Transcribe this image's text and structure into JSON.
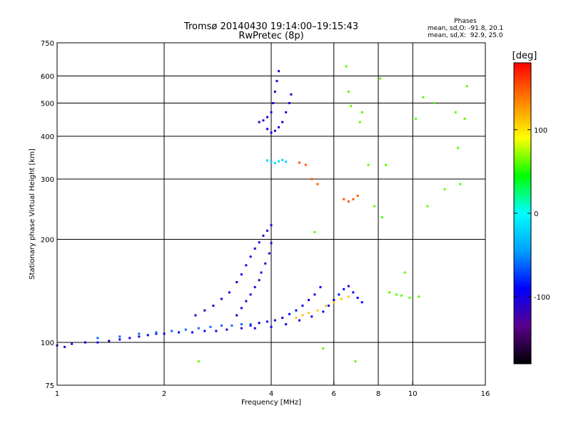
{
  "chart_data": {
    "type": "scatter",
    "title": "Tromsø 20140430 19:14:00–19:15:43",
    "subtitle": "RwPretec (8p)",
    "stats_block": {
      "heading": "Phases",
      "line1": "mean, sd,O: -91.8, 20.1",
      "line2": "mean, sd,X:  92.9, 25.0"
    },
    "xlabel": "Frequency [MHz]",
    "ylabel": "Stationary phase Virtual Height [km]",
    "x_scale": "log",
    "y_scale": "log",
    "xlim": [
      1,
      16
    ],
    "ylim": [
      75,
      750
    ],
    "x_ticks": [
      {
        "value": 1,
        "label": "1"
      },
      {
        "value": 2,
        "label": "2"
      },
      {
        "value": 4,
        "label": "4"
      },
      {
        "value": 6,
        "label": "6"
      },
      {
        "value": 8,
        "label": "8"
      },
      {
        "value": 10,
        "label": "10"
      },
      {
        "value": 16,
        "label": "16"
      }
    ],
    "y_ticks": [
      {
        "value": 75,
        "label": "75"
      },
      {
        "value": 100,
        "label": "100"
      },
      {
        "value": 200,
        "label": "200"
      },
      {
        "value": 300,
        "label": "300"
      },
      {
        "value": 400,
        "label": "400"
      },
      {
        "value": 500,
        "label": "500"
      },
      {
        "value": 600,
        "label": "600"
      },
      {
        "value": 750,
        "label": "750"
      }
    ],
    "x_gridlines": [
      2,
      4,
      6,
      8,
      10
    ],
    "y_gridlines": [
      100,
      200,
      300,
      400,
      500,
      600
    ],
    "grid": true,
    "colorbar": {
      "label": "[deg]",
      "range": [
        -180,
        180
      ],
      "ticks": [
        {
          "value": 100,
          "label": "100"
        },
        {
          "value": 0,
          "label": "0"
        },
        {
          "value": -100,
          "label": "-100"
        }
      ],
      "stops": [
        "#000000",
        "#5a008c",
        "#0000ff",
        "#00a0ff",
        "#00ffff",
        "#00ff00",
        "#ffff00",
        "#ff8000",
        "#ff0000"
      ]
    },
    "traces": [
      {
        "id": "E-layer-O",
        "phase": -100,
        "points": [
          [
            1.0,
            98
          ],
          [
            1.05,
            97
          ],
          [
            1.1,
            99
          ],
          [
            1.2,
            100
          ],
          [
            1.3,
            100
          ],
          [
            1.4,
            101
          ],
          [
            1.5,
            102
          ],
          [
            1.6,
            103
          ],
          [
            1.7,
            104
          ],
          [
            1.8,
            105
          ],
          [
            1.9,
            106
          ],
          [
            2.0,
            106
          ],
          [
            2.2,
            107
          ],
          [
            2.4,
            107
          ],
          [
            2.6,
            108
          ],
          [
            2.8,
            108
          ],
          [
            3.0,
            109
          ],
          [
            3.3,
            110
          ],
          [
            3.6,
            110
          ],
          [
            4.0,
            111
          ],
          [
            4.4,
            113
          ],
          [
            4.8,
            116
          ],
          [
            5.2,
            119
          ],
          [
            5.6,
            123
          ]
        ]
      },
      {
        "id": "E-layer-X",
        "phase": -60,
        "points": [
          [
            1.3,
            103
          ],
          [
            1.5,
            104
          ],
          [
            1.7,
            106
          ],
          [
            1.9,
            107
          ],
          [
            2.1,
            108
          ],
          [
            2.3,
            109
          ],
          [
            2.5,
            110
          ],
          [
            2.7,
            111
          ],
          [
            2.9,
            112
          ],
          [
            3.1,
            112
          ],
          [
            3.3,
            113
          ],
          [
            3.5,
            113
          ]
        ]
      },
      {
        "id": "F1-O-trace",
        "phase": -100,
        "points": [
          [
            2.45,
            120
          ],
          [
            2.6,
            124
          ],
          [
            2.75,
            128
          ],
          [
            2.9,
            134
          ],
          [
            3.05,
            140
          ],
          [
            3.2,
            150
          ],
          [
            3.3,
            158
          ],
          [
            3.4,
            168
          ],
          [
            3.5,
            178
          ],
          [
            3.6,
            188
          ],
          [
            3.7,
            196
          ],
          [
            3.8,
            205
          ],
          [
            3.9,
            212
          ],
          [
            4.0,
            220
          ]
        ]
      },
      {
        "id": "F1-O-fill",
        "phase": -105,
        "points": [
          [
            3.2,
            120
          ],
          [
            3.3,
            126
          ],
          [
            3.4,
            132
          ],
          [
            3.5,
            138
          ],
          [
            3.6,
            145
          ],
          [
            3.7,
            152
          ],
          [
            3.75,
            160
          ],
          [
            3.85,
            170
          ],
          [
            3.95,
            182
          ],
          [
            4.0,
            195
          ]
        ]
      },
      {
        "id": "F1-lower",
        "phase": -95,
        "points": [
          [
            3.5,
            112
          ],
          [
            3.7,
            114
          ],
          [
            3.9,
            115
          ],
          [
            4.1,
            116
          ],
          [
            4.3,
            118
          ],
          [
            4.5,
            121
          ],
          [
            4.7,
            124
          ],
          [
            4.9,
            128
          ],
          [
            5.1,
            133
          ],
          [
            5.3,
            138
          ],
          [
            5.5,
            145
          ]
        ]
      },
      {
        "id": "F1-X-trace",
        "phase": 110,
        "points": [
          [
            4.7,
            118
          ],
          [
            4.9,
            120
          ],
          [
            5.1,
            122
          ],
          [
            5.4,
            124
          ],
          [
            5.7,
            128
          ],
          [
            6.0,
            131
          ],
          [
            6.3,
            134
          ],
          [
            6.6,
            136
          ]
        ]
      },
      {
        "id": "F1-X-upper",
        "phase": -90,
        "points": [
          [
            5.8,
            128
          ],
          [
            6.0,
            133
          ],
          [
            6.2,
            138
          ],
          [
            6.4,
            143
          ],
          [
            6.6,
            146
          ],
          [
            6.8,
            140
          ],
          [
            7.0,
            135
          ],
          [
            7.2,
            131
          ]
        ]
      },
      {
        "id": "F2-O",
        "phase": -105,
        "points": [
          [
            3.7,
            440
          ],
          [
            3.8,
            445
          ],
          [
            3.9,
            455
          ],
          [
            4.0,
            470
          ],
          [
            4.05,
            500
          ],
          [
            4.1,
            540
          ],
          [
            4.15,
            580
          ],
          [
            4.2,
            620
          ],
          [
            3.9,
            420
          ],
          [
            4.0,
            410
          ],
          [
            4.1,
            415
          ],
          [
            4.2,
            425
          ],
          [
            4.3,
            440
          ],
          [
            4.4,
            470
          ],
          [
            4.5,
            500
          ],
          [
            4.55,
            530
          ]
        ]
      },
      {
        "id": "F2-X-echo",
        "phase": -20,
        "points": [
          [
            3.9,
            340
          ],
          [
            4.0,
            336
          ],
          [
            4.1,
            334
          ],
          [
            4.2,
            338
          ],
          [
            4.3,
            341
          ],
          [
            4.4,
            337
          ]
        ]
      },
      {
        "id": "spread-F",
        "phase": 150,
        "points": [
          [
            4.8,
            335
          ],
          [
            5.0,
            330
          ],
          [
            5.2,
            300
          ],
          [
            5.4,
            290
          ],
          [
            6.4,
            262
          ],
          [
            6.6,
            258
          ],
          [
            6.8,
            262
          ],
          [
            7.0,
            268
          ]
        ]
      },
      {
        "id": "scatter",
        "phase": 60,
        "points": [
          [
            5.3,
            210
          ],
          [
            6.5,
            640
          ],
          [
            6.6,
            540
          ],
          [
            6.7,
            490
          ],
          [
            7.2,
            470
          ],
          [
            7.5,
            330
          ],
          [
            7.8,
            250
          ],
          [
            8.1,
            590
          ],
          [
            8.2,
            232
          ],
          [
            8.6,
            140
          ],
          [
            9.0,
            138
          ],
          [
            9.3,
            137
          ],
          [
            9.8,
            135
          ],
          [
            10.4,
            136
          ],
          [
            10.7,
            520
          ],
          [
            10.2,
            450
          ],
          [
            11.5,
            500
          ],
          [
            13.2,
            470
          ],
          [
            13.4,
            370
          ],
          [
            13.6,
            290
          ],
          [
            14.0,
            450
          ],
          [
            14.2,
            560
          ],
          [
            12.3,
            280
          ],
          [
            11.0,
            250
          ],
          [
            9.5,
            160
          ],
          [
            8.4,
            330
          ],
          [
            7.1,
            440
          ],
          [
            5.6,
            96
          ],
          [
            6.9,
            88
          ],
          [
            2.5,
            88
          ]
        ]
      }
    ]
  }
}
